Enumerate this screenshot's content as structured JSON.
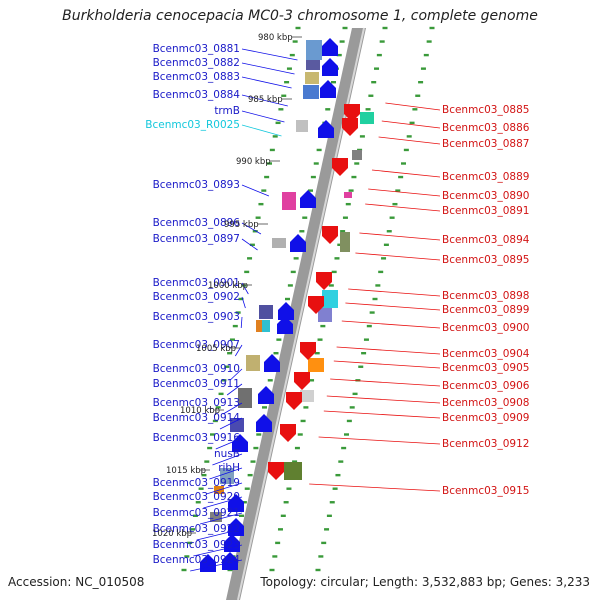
{
  "title": "Burkholderia cenocepacia MC0-3 chromosome 1, complete genome",
  "accession": "Accession: NC_010508",
  "topology": "Topology: circular; Length: 3,532,883 bp; Genes: 3,233",
  "colors": {
    "forward_gene": "#1010e8",
    "reverse_gene": "#e81010",
    "rna_label": "#14c8dc",
    "backbone": "#9a9a9a",
    "tick_dots": "#3a9a3a"
  },
  "scale_ticks": [
    "980 kbp",
    "985 kbp",
    "990 kbp",
    "995 kbp",
    "1000 kbp",
    "1005 kbp",
    "1010 kbp",
    "1015 kbp",
    "1020 kbp"
  ],
  "left_labels": [
    "Bcenmc03_0881",
    "Bcenmc03_0882",
    "Bcenmc03_0883",
    "Bcenmc03_0884",
    "trmB",
    "Bcenmc03_R0025",
    "Bcenmc03_0893",
    "Bcenmc03_0896",
    "Bcenmc03_0897",
    "Bcenmc03_0901",
    "Bcenmc03_0902",
    "Bcenmc03_0903",
    "Bcenmc03_0907",
    "Bcenmc03_0910",
    "Bcenmc03_0911",
    "Bcenmc03_0913",
    "Bcenmc03_0914",
    "Bcenmc03_0916",
    "nusB",
    "ribH",
    "Bcenmc03_0919",
    "Bcenmc03_0920",
    "Bcenmc03_0921",
    "Bcenmc03_0922",
    "Bcenmc03_0923",
    "Bcenmc03_0924"
  ],
  "right_labels": [
    "Bcenmc03_0885",
    "Bcenmc03_0886",
    "Bcenmc03_0887",
    "Bcenmc03_0889",
    "Bcenmc03_0890",
    "Bcenmc03_0891",
    "Bcenmc03_0894",
    "Bcenmc03_0895",
    "Bcenmc03_0898",
    "Bcenmc03_0899",
    "Bcenmc03_0900",
    "Bcenmc03_0904",
    "Bcenmc03_0905",
    "Bcenmc03_0906",
    "Bcenmc03_0908",
    "Bcenmc03_0909",
    "Bcenmc03_0912",
    "Bcenmc03_0915"
  ]
}
